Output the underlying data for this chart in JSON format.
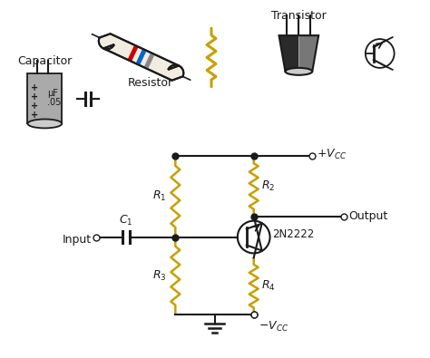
{
  "bg_color": "#ffffff",
  "line_color": "#1a1a1a",
  "resistor_color": "#C8A000",
  "circuit": {
    "R1_label": "$R_1$",
    "R2_label": "$R_2$",
    "R3_label": "$R_3$",
    "R4_label": "$R_4$",
    "C1_label": "$C_1$",
    "transistor_label": "2N2222",
    "vcc_top": "$+V_{CC}$",
    "vcc_bot": "$-V_{CC}$",
    "input_label": "Input",
    "output_label": "Output"
  },
  "component_labels": {
    "resistor": "Resistor",
    "transistor": "Transistor",
    "capacitor": "Capacitor"
  },
  "band_colors": [
    "#cc0000",
    "#0055cc",
    "#888888"
  ],
  "resistor_body_color": "#f0ece0",
  "cap_body_color": "#aaaaaa",
  "transistor_body_dark": "#333333",
  "transistor_body_light": "#888888"
}
